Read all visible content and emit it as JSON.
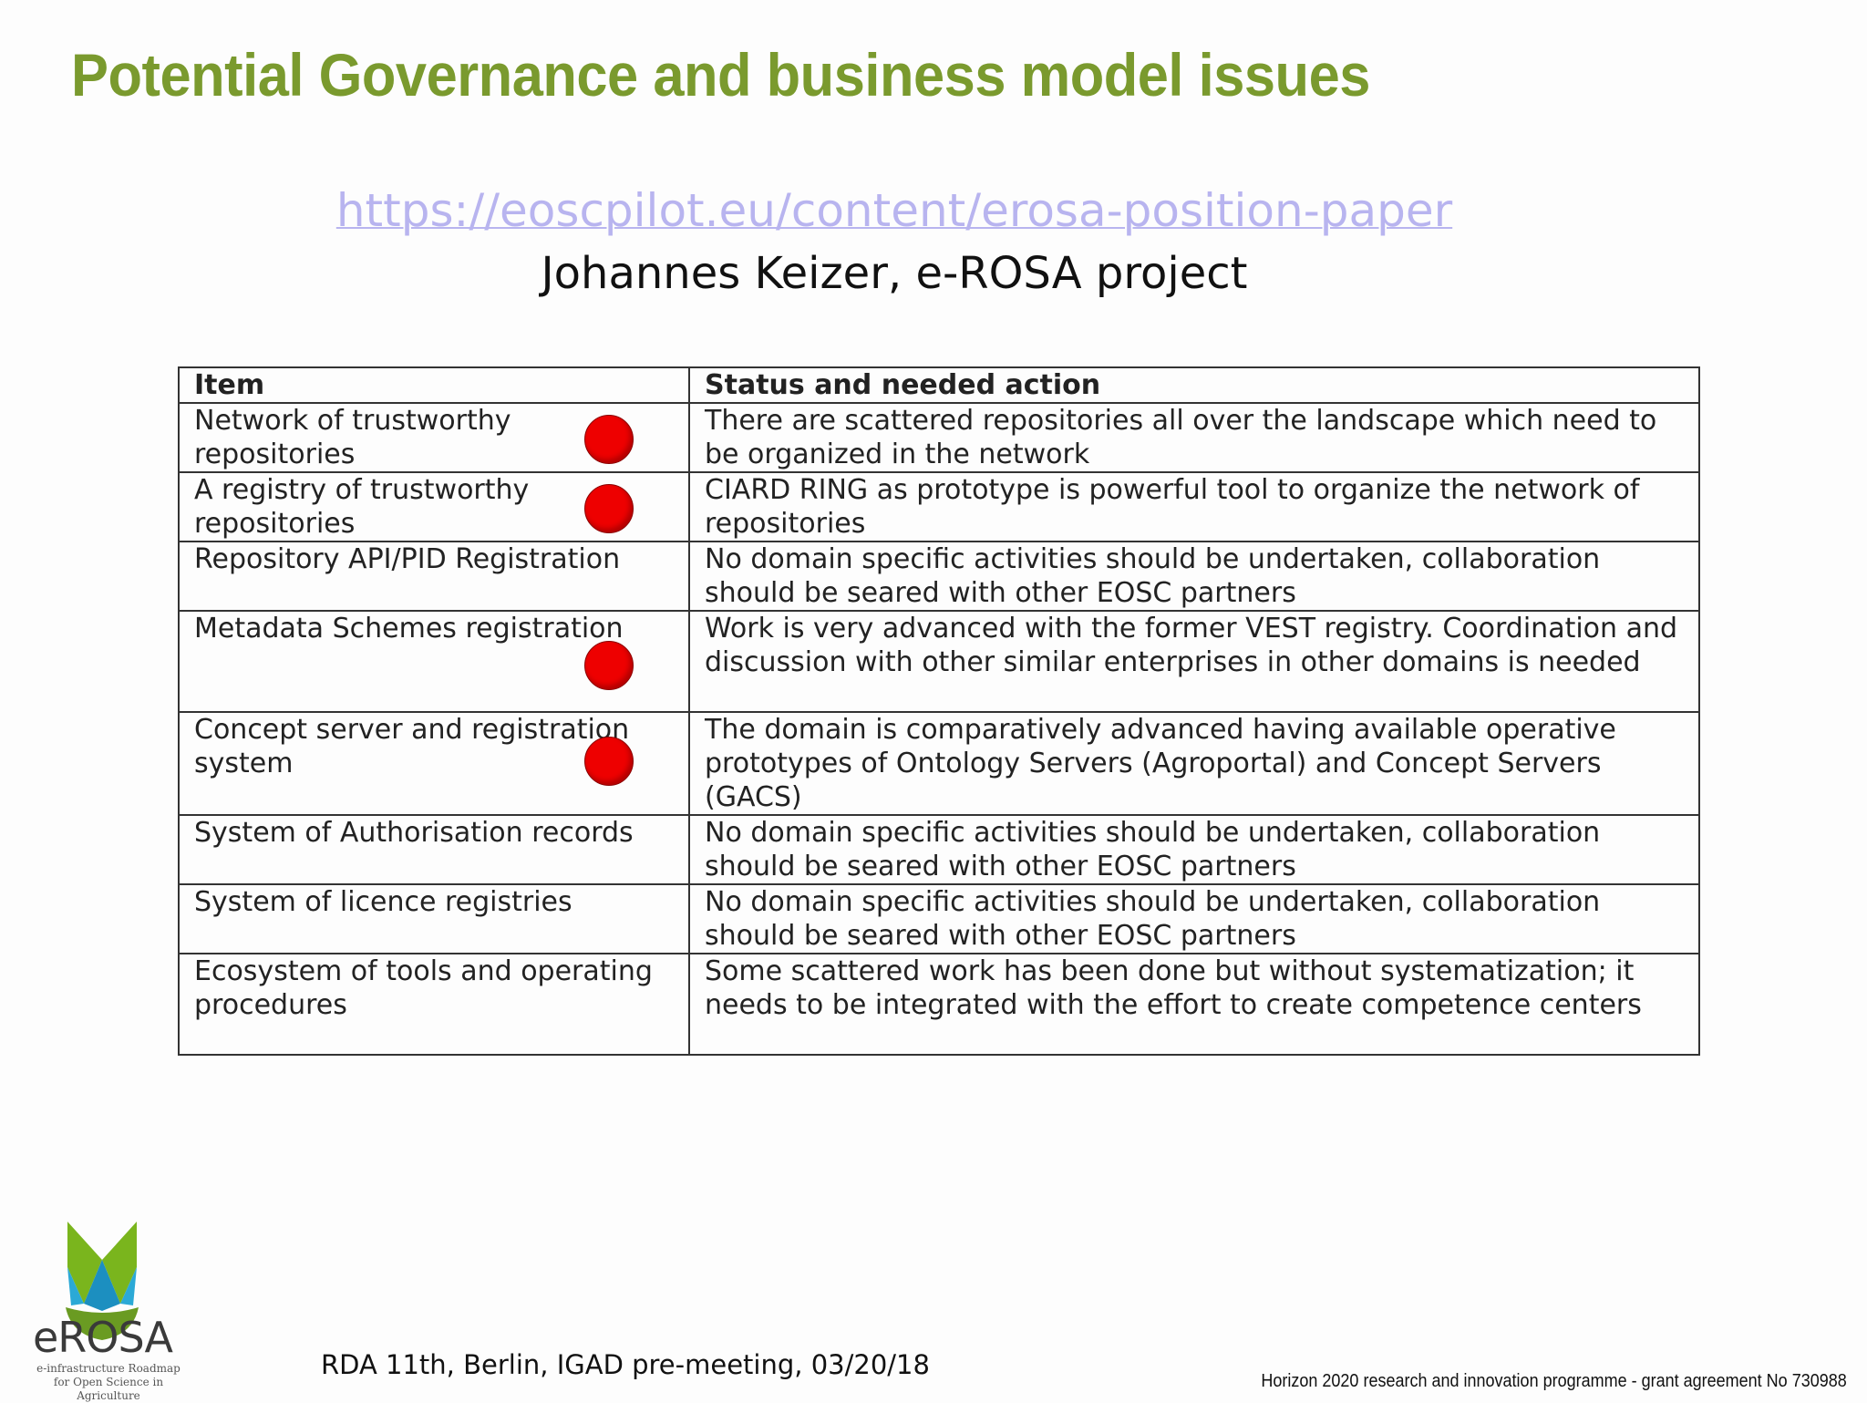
{
  "slide": {
    "title": "Potential Governance and business model issues",
    "link": "https://eoscpilot.eu/content/erosa-position-paper",
    "author": "Johannes Keizer, e-ROSA project"
  },
  "table": {
    "headers": [
      "Item",
      "Status and needed action"
    ],
    "rows": [
      {
        "item": "Network of trustworthy repositories",
        "status": "There are scattered repositories all over the landscape which need to be organized in the network",
        "flag": true
      },
      {
        "item": "A registry of trustworthy repositories",
        "status": "CIARD RING as prototype is powerful tool to organize the network of repositories",
        "flag": true
      },
      {
        "item": "Repository API/PID Registration",
        "status": "No domain specific activities should be undertaken, collaboration should be seared with other EOSC partners",
        "flag": false
      },
      {
        "item": "Metadata Schemes registration",
        "status": "Work is very advanced with the former VEST registry. Coordination and discussion with other similar enterprises in other domains is needed",
        "flag": true
      },
      {
        "item": "Concept server and registration system",
        "status": "The domain is comparatively advanced having available operative prototypes of Ontology Servers (Agroportal) and Concept Servers (GACS)",
        "flag": true
      },
      {
        "item": "System of Authorisation records",
        "status": "No domain specific activities should be undertaken, collaboration should be seared with other EOSC partners",
        "flag": false
      },
      {
        "item": "System of licence registries",
        "status": "No domain specific activities should be undertaken, collaboration should be seared with other EOSC partners",
        "flag": false
      },
      {
        "item": "Ecosystem of tools and operating procedures",
        "status": "Some scattered work has been done but without systematization; it needs to be integrated with the effort to create competence centers",
        "flag": false
      }
    ]
  },
  "logo": {
    "name": "eROSA",
    "tagline_1": "e-infrastructure Roadmap",
    "tagline_2": "for Open Science in Agriculture"
  },
  "footer": {
    "event": "RDA 11th, Berlin, IGAD pre-meeting, 03/20/18",
    "funding": "Horizon 2020 research and innovation programme - grant agreement No 730988"
  },
  "colors": {
    "title_green": "#7a9a2e",
    "link_lavender": "#b8b4ef",
    "flag_red": "#ee0000"
  }
}
